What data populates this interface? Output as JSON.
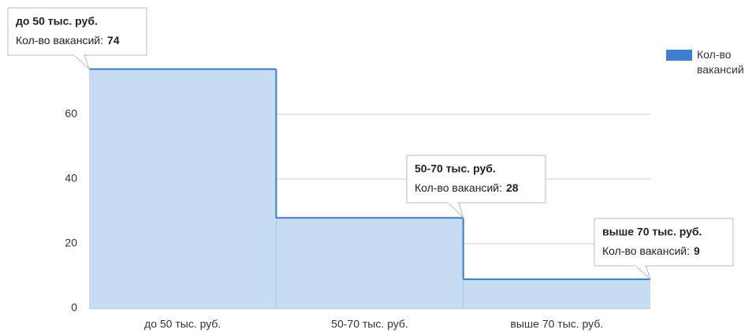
{
  "chart_data": {
    "type": "stepped_area",
    "categories": [
      "до 50 тыс. руб.",
      "50-70 тыс. руб.",
      "выше 70 тыс. руб."
    ],
    "series": [
      {
        "name": "Кол-во вакансий",
        "color": "#3a7cc8",
        "values": [
          74,
          28,
          9
        ]
      }
    ],
    "tooltip_label": "Кол-во вакансий:",
    "ylim": [
      0,
      80
    ],
    "yticks": [
      0,
      20,
      40,
      60
    ],
    "grid": true,
    "legend": "right"
  }
}
